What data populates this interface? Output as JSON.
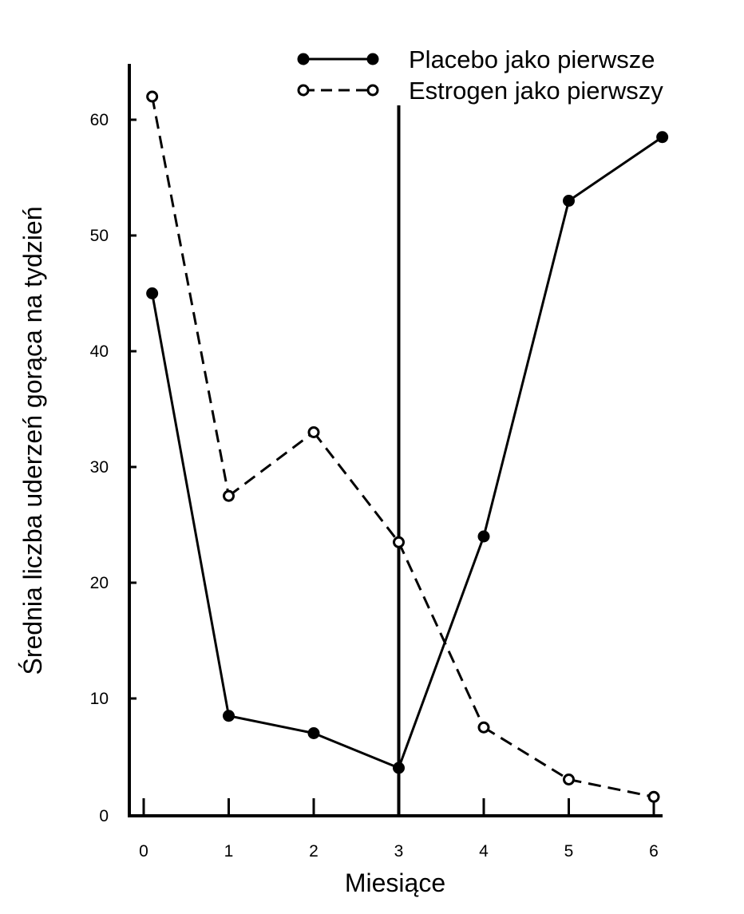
{
  "chart_data": {
    "type": "line",
    "xlabel": "Miesiące",
    "ylabel": "Średnia liczba uderzeń gorąca na tydzień",
    "x_ticks": [
      "0",
      "1",
      "2",
      "3",
      "4",
      "5",
      "6"
    ],
    "y_ticks": [
      "0",
      "10",
      "20",
      "30",
      "40",
      "50",
      "60"
    ],
    "xlim": [
      -0.2,
      6.1
    ],
    "ylim": [
      0,
      65
    ],
    "grid": false,
    "legend_position": "top-right",
    "crossover_line_x": 3,
    "series": [
      {
        "name": "Placebo jako pierwsze",
        "marker": "filled-circle",
        "line_style": "solid",
        "color": "#000000",
        "x": [
          0.1,
          1.0,
          2.0,
          3.0,
          4.0,
          5.0,
          6.1
        ],
        "y": [
          45,
          8.5,
          7,
          4,
          24,
          53,
          58.5
        ]
      },
      {
        "name": "Estrogen jako pierwszy",
        "marker": "open-circle",
        "line_style": "dashed",
        "color": "#000000",
        "x": [
          0.1,
          1.0,
          2.0,
          3.0,
          4.0,
          5.0,
          6.0
        ],
        "y": [
          62,
          27.5,
          33,
          23.5,
          7.5,
          3,
          1.5
        ]
      }
    ]
  }
}
